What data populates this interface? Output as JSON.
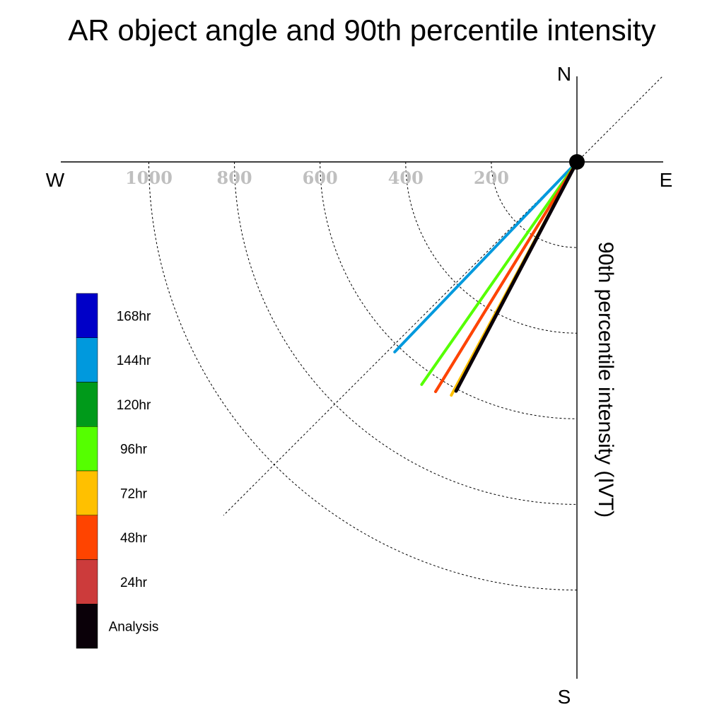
{
  "title": "AR object angle and 90th percentile intensity",
  "compass": {
    "north": "N",
    "south": "S",
    "east": "E",
    "west": "W"
  },
  "chart_data": {
    "type": "polar-line",
    "title": "AR object angle and 90th percentile intensity",
    "xlabel": "",
    "ylabel": "90th percentile intensity (IVT)",
    "radial_ticks": [
      200,
      400,
      600,
      800,
      1000
    ],
    "radial_tick_labels": [
      "200",
      "400",
      "600",
      "800",
      "1000"
    ],
    "radial_range": [
      0,
      1180
    ],
    "angle_convention": "compass degrees clockwise from north",
    "reference_line_angle_deg": 225,
    "grid": true,
    "legend_placement": "left",
    "series": [
      {
        "name": "144hr",
        "color": "#0099dd",
        "angle_deg": 223.8,
        "intensity": 615
      },
      {
        "name": "96hr",
        "color": "#55ff00",
        "angle_deg": 214.9,
        "intensity": 634
      },
      {
        "name": "24hr",
        "color": "#cc3b3b",
        "angle_deg": 211.6,
        "intensity": 630
      },
      {
        "name": "48hr",
        "color": "#ff4400",
        "angle_deg": 211.6,
        "intensity": 630
      },
      {
        "name": "72hr",
        "color": "#ffc000",
        "angle_deg": 208.3,
        "intensity": 619
      },
      {
        "name": "Analysis",
        "color": "#0a0008",
        "angle_deg": 207.8,
        "intensity": 605
      }
    ]
  },
  "legend": [
    {
      "label": "168hr",
      "color": "#0000c8"
    },
    {
      "label": "144hr",
      "color": "#0099dd"
    },
    {
      "label": "120hr",
      "color": "#009a1a"
    },
    {
      "label": "96hr",
      "color": "#55ff00"
    },
    {
      "label": "72hr",
      "color": "#ffc000"
    },
    {
      "label": "48hr",
      "color": "#ff4400"
    },
    {
      "label": "24hr",
      "color": "#cc3b3b"
    },
    {
      "label": "Analysis",
      "color": "#0a0008"
    }
  ]
}
